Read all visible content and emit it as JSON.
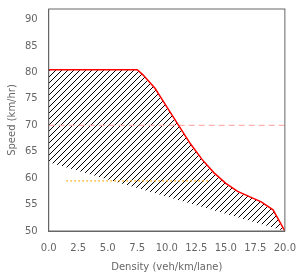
{
  "chart_data": {
    "type": "line",
    "xlabel": "Density (veh/km/lane)",
    "ylabel": "Speed (km/hr)",
    "xlim": [
      0.0,
      20.0
    ],
    "ylim": [
      50,
      92
    ],
    "xticks": [
      {
        "value": 0.0,
        "label": "0.0"
      },
      {
        "value": 2.5,
        "label": "2.5"
      },
      {
        "value": 5.0,
        "label": "5.0"
      },
      {
        "value": 7.5,
        "label": "7.5"
      },
      {
        "value": 10.0,
        "label": "10.0"
      },
      {
        "value": 12.5,
        "label": "12.5"
      },
      {
        "value": 15.0,
        "label": "15.0"
      },
      {
        "value": 17.5,
        "label": "17.5"
      },
      {
        "value": 20.0,
        "label": "20.0"
      }
    ],
    "yticks": [
      50,
      55,
      60,
      65,
      70,
      75,
      80,
      85,
      90
    ],
    "grid": false,
    "series": [
      {
        "color": "#ff0000",
        "line_style": "solid",
        "x": [
          0,
          7.5,
          8.0,
          9.0,
          10.0,
          11.0,
          12.0,
          13.0,
          14.0,
          15.0,
          16.0,
          17.0,
          18.0,
          19.0,
          20.0
        ],
        "values": [
          80.5,
          80.5,
          79.5,
          77.0,
          73.5,
          70.0,
          66.5,
          63.5,
          61.0,
          59.0,
          57.5,
          56.5,
          55.5,
          54.0,
          50.0
        ]
      },
      {
        "type": "area",
        "color": "black",
        "x": [
          0.0,
          20.0
        ],
        "values": [
          63.0,
          50.0
        ]
      },
      {
        "color": "#ffb0b0",
        "line_style": "dashed",
        "x": [
          0,
          20
        ],
        "values": [
          70,
          70
        ]
      },
      {
        "color": "#ffa500",
        "line_style": "dotted",
        "x": [
          1.5,
          13.5
        ],
        "values": [
          59.5,
          59.5
        ]
      }
    ]
  }
}
